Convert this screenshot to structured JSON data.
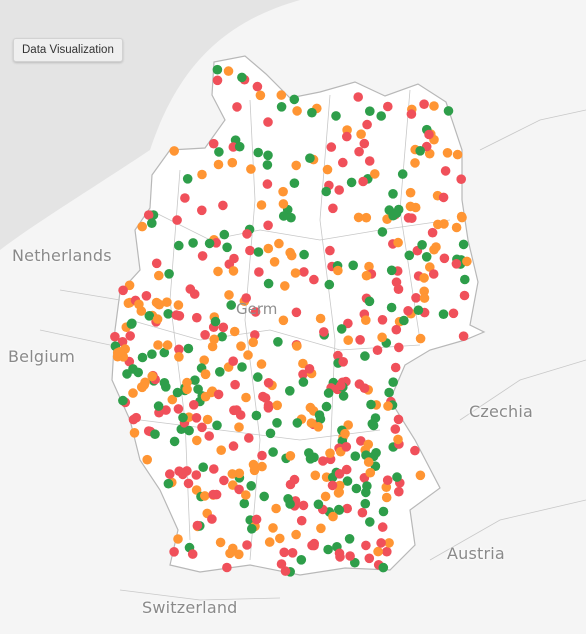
{
  "controls": {
    "viz_button_label": "Data Visualization"
  },
  "labels": {
    "netherlands": "Netherlands",
    "belgium": "Belgium",
    "czechia": "Czechia",
    "austria": "Austria",
    "switzerland": "Switzerland",
    "germany_partial": "Germ"
  },
  "colors": {
    "sea": "#e4e4e4",
    "land": "#f5f5f5",
    "germany": "#ffffff",
    "border": "#b8b8b8",
    "marker_green": "#2e9e4a",
    "marker_orange": "#ff9533",
    "marker_red": "#f0505a"
  },
  "legend_note": "Location markers colored green, orange and red"
}
